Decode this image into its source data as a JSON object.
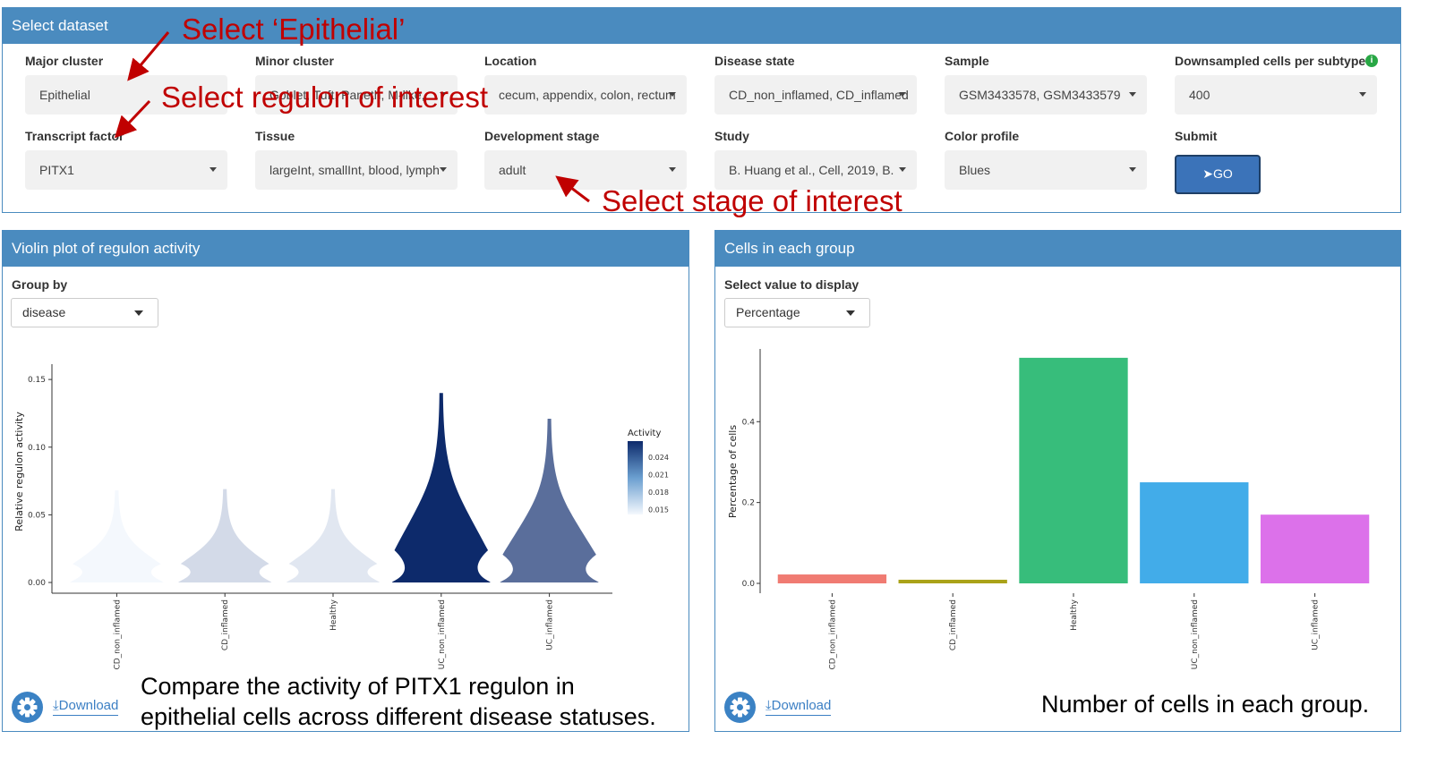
{
  "dataset_panel": {
    "title": "Select dataset",
    "fields": [
      {
        "label": "Major cluster",
        "value": "Epithelial"
      },
      {
        "label": "Minor cluster",
        "value": "Goblet, Tuft, Paneth, M-like, ..."
      },
      {
        "label": "Location",
        "value": "cecum, appendix, colon, rectum"
      },
      {
        "label": "Disease state",
        "value": "CD_non_inflamed, CD_inflamed"
      },
      {
        "label": "Sample",
        "value": "GSM3433578, GSM3433579"
      },
      {
        "label": "Downsampled cells per subtype",
        "value": "400"
      },
      {
        "label": "Transcript factor",
        "value": "PITX1"
      },
      {
        "label": "Tissue",
        "value": "largeInt, smallInt, blood, lymph"
      },
      {
        "label": "Development stage",
        "value": "adult"
      },
      {
        "label": "Study",
        "value": "B. Huang et al., Cell, 2019, B."
      },
      {
        "label": "Color profile",
        "value": "Blues"
      }
    ],
    "submit_label": "Submit",
    "go_label": "GO"
  },
  "annotations": {
    "epithelial": "Select ‘Epithelial’",
    "regulon": "Select regulon of interest",
    "stage": "Select stage of interest"
  },
  "violin_panel": {
    "title": "Violin plot of regulon activity",
    "group_by_label": "Group by",
    "group_by_value": "disease",
    "download_label": "Download",
    "caption_line1": "Compare the activity of PITX1 regulon in",
    "caption_line2": "epithelial cells across different disease statuses."
  },
  "bar_panel": {
    "title": "Cells in each group",
    "select_label": "Select value to display",
    "select_value": "Percentage",
    "download_label": "Download",
    "caption": "Number of cells in each group."
  },
  "chart_data": [
    {
      "type": "violin",
      "ylabel": "Relative regulon activity",
      "ylim": [
        0,
        0.16
      ],
      "yticks": [
        "0.00",
        "0.05",
        "0.10",
        "0.15"
      ],
      "categories": [
        "CD_non_inflamed",
        "CD_inflamed",
        "Healthy",
        "UC_non_inflamed",
        "UC_inflamed"
      ],
      "max_values": [
        0.068,
        0.069,
        0.069,
        0.14,
        0.121
      ],
      "mean_activity": [
        0.014,
        0.017,
        0.016,
        0.026,
        0.023
      ],
      "legend_title": "Activity",
      "legend_ticks": [
        "0.024",
        "0.021",
        "0.018",
        "0.015"
      ],
      "colors": {
        "low": "#f4f8fd",
        "high": "#0d2a6b"
      }
    },
    {
      "type": "bar",
      "ylabel": "Percentage of cells",
      "ylim": [
        0,
        0.55
      ],
      "yticks": [
        "0.0",
        "0.2",
        "0.4"
      ],
      "categories": [
        "CD_non_inflamed",
        "CD_inflamed",
        "Healthy",
        "UC_non_inflamed",
        "UC_inflamed"
      ],
      "values": [
        0.022,
        0.009,
        0.558,
        0.25,
        0.17
      ],
      "colors": [
        "#f07b72",
        "#aaa219",
        "#37bd7b",
        "#42ace9",
        "#dc71ea"
      ]
    }
  ]
}
